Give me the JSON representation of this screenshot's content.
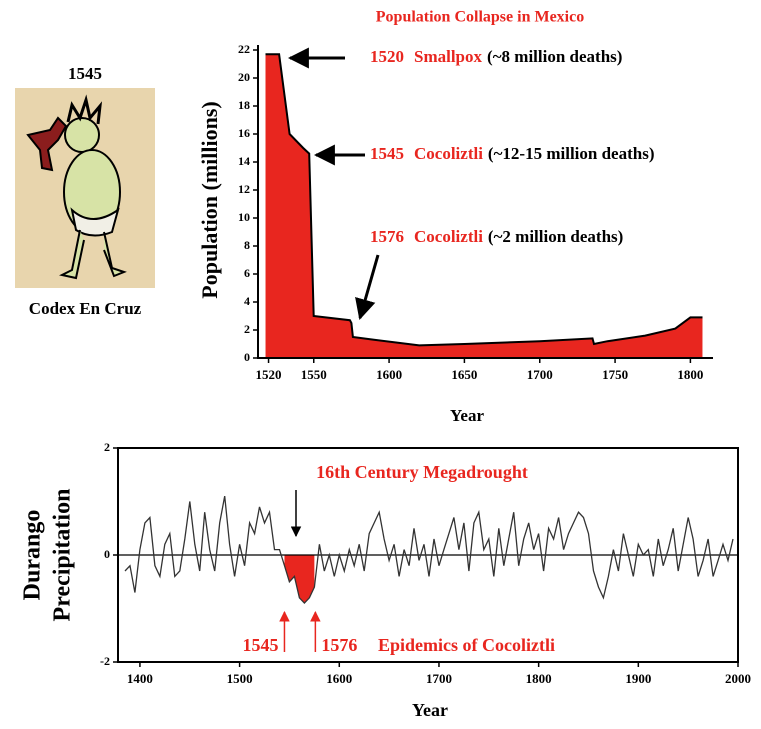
{
  "image_panel": {
    "label": "1545",
    "caption": "Codex En Cruz"
  },
  "chart_data": [
    {
      "type": "area",
      "title": "Population Collapse in Mexico",
      "xlabel": "Year",
      "ylabel": "Population (millions)",
      "x": [
        1518,
        1527,
        1534,
        1543,
        1547,
        1550,
        1574,
        1575,
        1576,
        1590,
        1620,
        1650,
        1700,
        1735,
        1736,
        1745,
        1770,
        1790,
        1800,
        1808
      ],
      "values": [
        21.7,
        21.7,
        16,
        15,
        14.6,
        3,
        2.7,
        2.5,
        1.5,
        1.3,
        0.9,
        1.0,
        1.2,
        1.4,
        1.0,
        1.2,
        1.6,
        2.1,
        2.9,
        2.9
      ],
      "color": "#e8261f",
      "xlim": [
        1513,
        1815
      ],
      "xticks": [
        1520,
        1550,
        1600,
        1650,
        1700,
        1750,
        1800
      ],
      "ylim": [
        0,
        22
      ],
      "yticks": [
        0,
        2,
        4,
        6,
        8,
        10,
        12,
        14,
        16,
        18,
        20,
        22
      ],
      "annotations": [
        {
          "year": "1520",
          "event": "Smallpox",
          "note": "(~8 million deaths)"
        },
        {
          "year": "1545",
          "event": "Cocoliztli",
          "note": "(~12-15 million deaths)"
        },
        {
          "year": "1576",
          "event": "Cocoliztli",
          "note": "(~2 million deaths)"
        }
      ]
    },
    {
      "type": "line",
      "xlabel": "Year",
      "ylabel": [
        "Durango",
        "Precipitation"
      ],
      "x": [
        1385,
        1390,
        1395,
        1400,
        1405,
        1410,
        1415,
        1420,
        1425,
        1430,
        1435,
        1440,
        1445,
        1450,
        1455,
        1460,
        1465,
        1470,
        1475,
        1480,
        1485,
        1490,
        1495,
        1500,
        1505,
        1510,
        1515,
        1520,
        1525,
        1530,
        1535,
        1540,
        1545,
        1550,
        1555,
        1560,
        1565,
        1570,
        1575,
        1580,
        1585,
        1590,
        1595,
        1600,
        1605,
        1610,
        1615,
        1620,
        1625,
        1630,
        1635,
        1640,
        1645,
        1650,
        1655,
        1660,
        1665,
        1670,
        1675,
        1680,
        1685,
        1690,
        1695,
        1700,
        1705,
        1710,
        1715,
        1720,
        1725,
        1730,
        1735,
        1740,
        1745,
        1750,
        1755,
        1760,
        1765,
        1770,
        1775,
        1780,
        1785,
        1790,
        1795,
        1800,
        1805,
        1810,
        1815,
        1820,
        1825,
        1830,
        1835,
        1840,
        1845,
        1850,
        1855,
        1860,
        1865,
        1870,
        1875,
        1880,
        1885,
        1890,
        1895,
        1900,
        1905,
        1910,
        1915,
        1920,
        1925,
        1930,
        1935,
        1940,
        1945,
        1950,
        1955,
        1960,
        1965,
        1970,
        1975,
        1980,
        1985,
        1990,
        1995
      ],
      "values": [
        -0.3,
        -0.2,
        -0.7,
        0.1,
        0.6,
        0.7,
        -0.2,
        -0.4,
        0.2,
        0.4,
        -0.4,
        -0.3,
        0.3,
        1.0,
        0.2,
        -0.3,
        0.8,
        0.1,
        -0.3,
        0.6,
        1.1,
        0.2,
        -0.4,
        0.2,
        -0.2,
        0.6,
        0.4,
        0.9,
        0.6,
        0.8,
        0.1,
        0.1,
        -0.2,
        -0.5,
        -0.4,
        -0.8,
        -0.9,
        -0.8,
        -0.6,
        0.2,
        -0.3,
        0.0,
        -0.4,
        0.0,
        -0.3,
        0.1,
        -0.2,
        0.2,
        -0.3,
        0.4,
        0.6,
        0.8,
        0.3,
        -0.1,
        0.2,
        -0.4,
        0.1,
        -0.2,
        0.5,
        -0.1,
        0.2,
        -0.4,
        0.3,
        -0.2,
        0.1,
        0.4,
        0.7,
        0.1,
        0.6,
        -0.3,
        0.6,
        0.8,
        0.1,
        0.3,
        -0.4,
        0.5,
        -0.2,
        0.3,
        0.8,
        -0.2,
        0.3,
        0.6,
        0.1,
        0.4,
        -0.3,
        0.5,
        0.3,
        0.7,
        0.1,
        0.4,
        0.6,
        0.8,
        0.7,
        0.4,
        -0.3,
        -0.6,
        -0.8,
        -0.4,
        0.1,
        -0.3,
        0.4,
        0.0,
        -0.4,
        0.2,
        0.0,
        0.1,
        -0.4,
        0.3,
        -0.2,
        0.1,
        0.5,
        -0.3,
        0.2,
        0.7,
        0.3,
        -0.4,
        -0.1,
        0.3,
        -0.4,
        -0.1,
        0.2,
        -0.1,
        0.3
      ],
      "color": "#333333",
      "shade_color": "#e8261f",
      "xlim": [
        1378,
        2000
      ],
      "xticks": [
        1400,
        1500,
        1600,
        1700,
        1800,
        1900,
        2000
      ],
      "ylim": [
        -2,
        2
      ],
      "yticks": [
        -2,
        0,
        2
      ],
      "annotation": "16th Century Megadrought",
      "event_years": [
        1545,
        1576
      ],
      "event_label": "Epidemics of Cocoliztli"
    }
  ]
}
